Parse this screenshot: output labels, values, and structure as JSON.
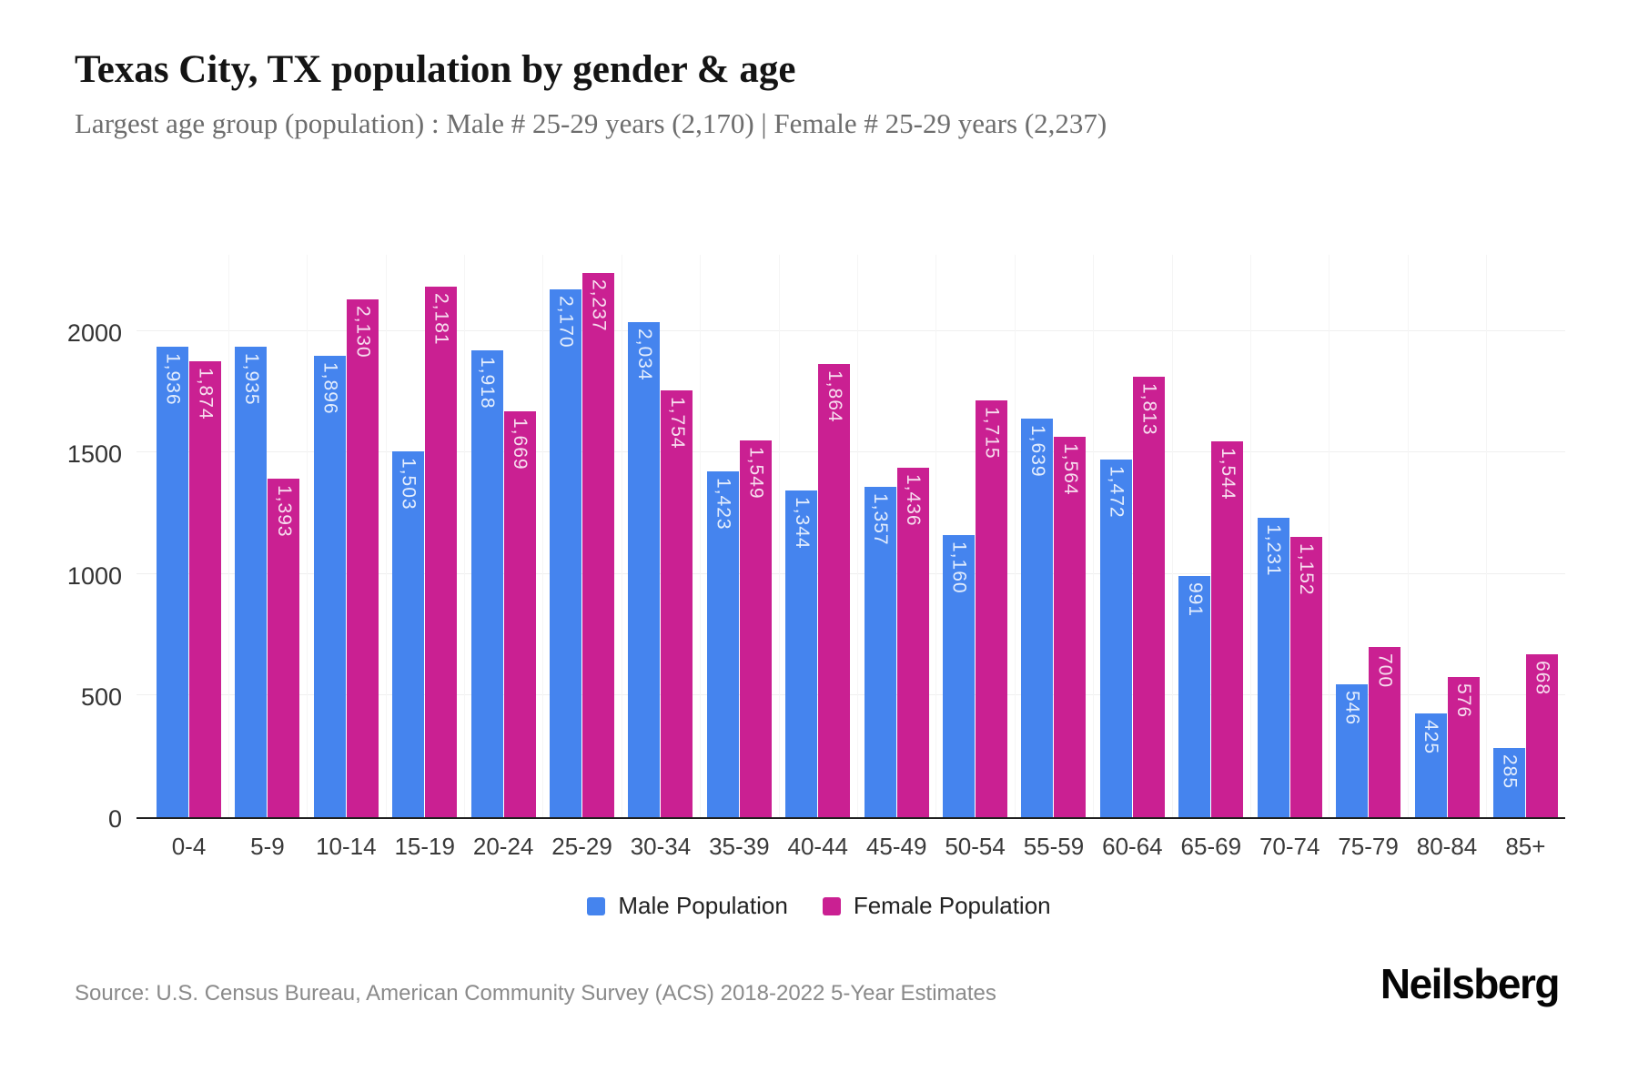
{
  "header": {
    "title": "Texas City, TX population by gender & age",
    "subtitle": "Largest age group (population) : Male # 25-29 years (2,170) | Female # 25-29 years (2,237)"
  },
  "chart_data": {
    "type": "bar",
    "title": "Texas City, TX population by gender & age",
    "xlabel": "",
    "ylabel": "",
    "categories": [
      "0-4",
      "5-9",
      "10-14",
      "15-19",
      "20-24",
      "25-29",
      "30-34",
      "35-39",
      "40-44",
      "45-49",
      "50-54",
      "55-59",
      "60-64",
      "65-69",
      "70-74",
      "75-79",
      "80-84",
      "85+"
    ],
    "series": [
      {
        "name": "Male Population",
        "color": "#4584ee",
        "values": [
          1936,
          1935,
          1896,
          1503,
          1918,
          2170,
          2034,
          1423,
          1344,
          1357,
          1160,
          1639,
          1472,
          991,
          1231,
          546,
          425,
          285
        ],
        "labels": [
          "1,936",
          "1,935",
          "1,896",
          "1,503",
          "1,918",
          "2,170",
          "2,034",
          "1,423",
          "1,344",
          "1,357",
          "1,160",
          "1,639",
          "1,472",
          "991",
          "1,231",
          "546",
          "425",
          "285"
        ]
      },
      {
        "name": "Female Population",
        "color": "#ca2092",
        "values": [
          1874,
          1393,
          2130,
          2181,
          1669,
          2237,
          1754,
          1549,
          1864,
          1436,
          1715,
          1564,
          1813,
          1544,
          1152,
          700,
          576,
          668
        ],
        "labels": [
          "1,874",
          "1,393",
          "2,130",
          "2,181",
          "1,669",
          "2,237",
          "1,754",
          "1,549",
          "1,864",
          "1,436",
          "1,715",
          "1,564",
          "1,813",
          "1,544",
          "1,152",
          "700",
          "576",
          "668"
        ]
      }
    ],
    "yticks": [
      0,
      500,
      1000,
      1500,
      2000
    ],
    "ylim": [
      0,
      2320
    ],
    "grid": true,
    "legend_position": "bottom"
  },
  "colors": {
    "male": "#4584ee",
    "female": "#ca2092",
    "grid": "#efefef",
    "axis": "#1f1f1f"
  },
  "footer": {
    "source": "Source: U.S. Census Bureau, American Community Survey (ACS) 2018-2022 5-Year Estimates",
    "logo": "Neilsberg"
  }
}
